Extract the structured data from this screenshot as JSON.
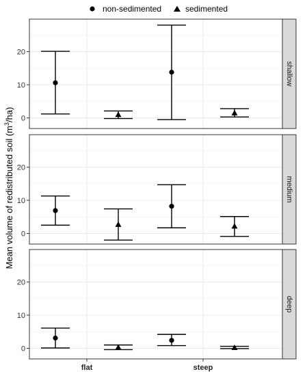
{
  "chart_data": {
    "type": "scatter",
    "ylabel_prefix": "Mean volume of redistributed soil (m",
    "ylabel_exp": "3",
    "ylabel_suffix": "/ha)",
    "xlabel": "",
    "categories": [
      "flat",
      "steep"
    ],
    "legend": {
      "position": "top",
      "entries": [
        {
          "name": "non-sedimented",
          "marker": "circle"
        },
        {
          "name": "sedimented",
          "marker": "triangle"
        }
      ]
    },
    "yticks": [
      0,
      10,
      20
    ],
    "ylim": [
      -3.2,
      29.8
    ],
    "grid": true,
    "panels": [
      {
        "label": "shallow",
        "series": [
          {
            "name": "non-sedimented",
            "points": [
              {
                "x": "flat",
                "y": 10.6,
                "lower": 1.2,
                "upper": 20.1
              },
              {
                "x": "steep",
                "y": 13.8,
                "lower": -0.5,
                "upper": 28.0
              }
            ]
          },
          {
            "name": "sedimented",
            "points": [
              {
                "x": "flat",
                "y": 1.0,
                "lower": -0.2,
                "upper": 2.1
              },
              {
                "x": "steep",
                "y": 1.5,
                "lower": 0.3,
                "upper": 2.8
              }
            ]
          }
        ]
      },
      {
        "label": "medium",
        "series": [
          {
            "name": "non-sedimented",
            "points": [
              {
                "x": "flat",
                "y": 6.9,
                "lower": 2.5,
                "upper": 11.3
              },
              {
                "x": "steep",
                "y": 8.2,
                "lower": 1.7,
                "upper": 14.7
              }
            ]
          },
          {
            "name": "sedimented",
            "points": [
              {
                "x": "flat",
                "y": 2.7,
                "lower": -2.0,
                "upper": 7.4
              },
              {
                "x": "steep",
                "y": 2.2,
                "lower": -0.9,
                "upper": 5.1
              }
            ]
          }
        ]
      },
      {
        "label": "deep",
        "series": [
          {
            "name": "non-sedimented",
            "points": [
              {
                "x": "flat",
                "y": 3.1,
                "lower": 0.1,
                "upper": 6.1
              },
              {
                "x": "steep",
                "y": 2.4,
                "lower": 0.8,
                "upper": 4.2
              }
            ]
          },
          {
            "name": "sedimented",
            "points": [
              {
                "x": "flat",
                "y": 0.3,
                "lower": -0.4,
                "upper": 1.0
              },
              {
                "x": "steep",
                "y": 0.2,
                "lower": -0.1,
                "upper": 0.6
              }
            ]
          }
        ]
      }
    ]
  },
  "colors": {
    "marker": "#000000",
    "gridline": "#ebebeb",
    "panel_border": "#333333",
    "strip_fill": "#d9d9d9",
    "tick_text": "#4d4d4d"
  }
}
